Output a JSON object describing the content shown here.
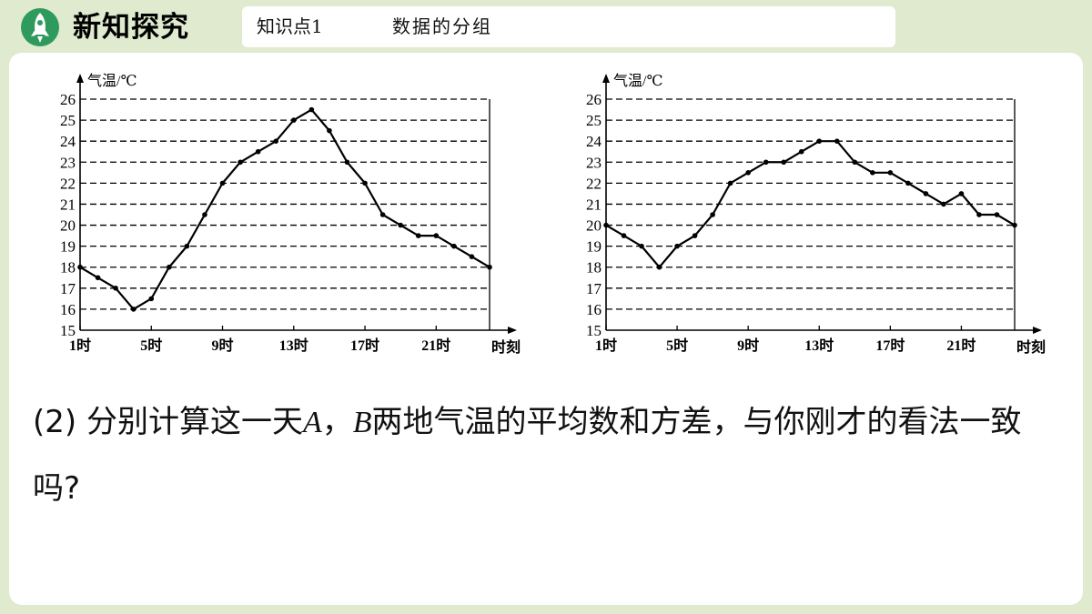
{
  "header": {
    "section_title": "新知探究",
    "knowledge_point": "知识点1",
    "topic": "数据的分组",
    "rocket_icon": "rocket-icon",
    "accent_color": "#2e9a5c"
  },
  "question": {
    "part1": "(2) 分别计算这一天",
    "var_a": "A",
    "part2": "，",
    "var_b": "B",
    "part3": "两地气温的平均数和方差，与你刚才的看法一致吗",
    "part4": "?"
  },
  "chart_data": [
    {
      "type": "line",
      "ylabel": "气温/℃",
      "xlabel": "时刻",
      "ylim": [
        15,
        26
      ],
      "yticks": [
        "15",
        "16",
        "17",
        "18",
        "19",
        "20",
        "21",
        "22",
        "23",
        "24",
        "25",
        "26"
      ],
      "xlim": [
        1,
        24
      ],
      "xtick_labels": [
        {
          "x": 1,
          "label": "1时"
        },
        {
          "x": 5,
          "label": "5时"
        },
        {
          "x": 9,
          "label": "9时"
        },
        {
          "x": 13,
          "label": "13时"
        },
        {
          "x": 17,
          "label": "17时"
        },
        {
          "x": 21,
          "label": "21时"
        }
      ],
      "grid": "horizontal dashed",
      "x": [
        1,
        2,
        3,
        4,
        5,
        6,
        7,
        8,
        9,
        10,
        11,
        12,
        13,
        14,
        15,
        16,
        17,
        18,
        19,
        20,
        21,
        22,
        23,
        24
      ],
      "values": [
        18,
        17.5,
        17,
        16,
        16.5,
        18,
        19,
        20.5,
        22,
        23,
        23.5,
        24,
        25,
        25.5,
        24.5,
        23,
        22,
        20.5,
        20,
        19.5,
        19.5,
        19,
        18.5,
        18
      ]
    },
    {
      "type": "line",
      "ylabel": "气温/℃",
      "xlabel": "时刻",
      "ylim": [
        15,
        26
      ],
      "yticks": [
        "15",
        "16",
        "17",
        "18",
        "19",
        "20",
        "21",
        "22",
        "23",
        "24",
        "25",
        "26"
      ],
      "xlim": [
        1,
        24
      ],
      "xtick_labels": [
        {
          "x": 1,
          "label": "1时"
        },
        {
          "x": 5,
          "label": "5时"
        },
        {
          "x": 9,
          "label": "9时"
        },
        {
          "x": 13,
          "label": "13时"
        },
        {
          "x": 17,
          "label": "17时"
        },
        {
          "x": 21,
          "label": "21时"
        }
      ],
      "grid": "horizontal dashed",
      "x": [
        1,
        2,
        3,
        4,
        5,
        6,
        7,
        8,
        9,
        10,
        11,
        12,
        13,
        14,
        15,
        16,
        17,
        18,
        19,
        20,
        21,
        22,
        23,
        24
      ],
      "values": [
        20,
        19.5,
        19,
        18,
        19,
        19.5,
        20.5,
        22,
        22.5,
        23,
        23,
        23.5,
        24,
        24,
        23,
        22.5,
        22.5,
        22,
        21.5,
        21,
        21.5,
        20.5,
        20.5,
        20
      ]
    }
  ]
}
